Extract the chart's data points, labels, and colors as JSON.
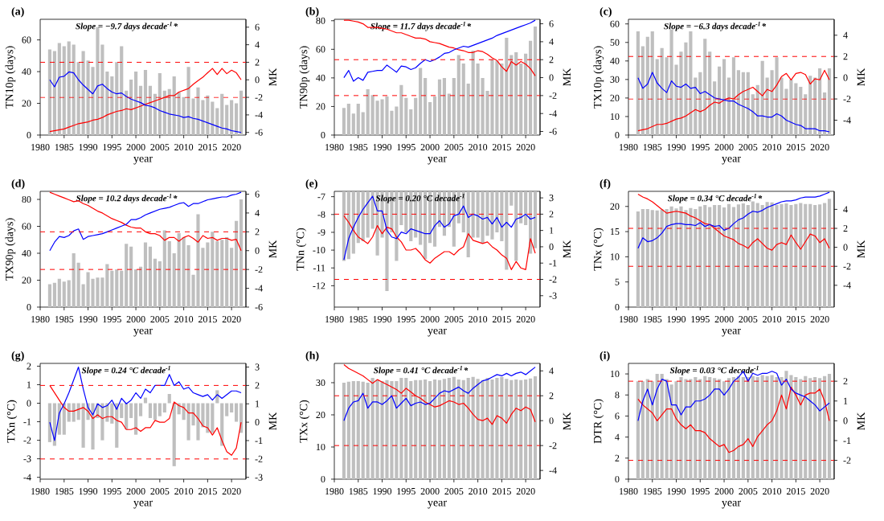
{
  "chart_data": [
    {
      "type": "bar",
      "title": "(a)",
      "xlabel": "year",
      "ylabel": "TN10p (days)",
      "y2label": "MK",
      "annotations": [
        "Slope = −9.7 days decade$^{-1}$*"
      ],
      "x": [
        1982,
        1983,
        1984,
        1985,
        1986,
        1987,
        1988,
        1989,
        1990,
        1991,
        1992,
        1993,
        1994,
        1995,
        1996,
        1997,
        1998,
        1999,
        2000,
        2001,
        2002,
        2003,
        2004,
        2005,
        2006,
        2007,
        2008,
        2009,
        2010,
        2011,
        2012,
        2013,
        2014,
        2015,
        2016,
        2017,
        2018,
        2019,
        2020,
        2021,
        2022
      ],
      "xlim": [
        1980,
        2023
      ],
      "xticks": [
        1980,
        1985,
        1990,
        1995,
        2000,
        2005,
        2010,
        2015,
        2020
      ],
      "ylim": [
        0,
        73
      ],
      "yticks": [
        0,
        20,
        40,
        60
      ],
      "y2lim": [
        -6.3,
        6.9
      ],
      "y2ticks": [
        -6,
        -4,
        -2,
        0,
        2,
        4,
        6
      ],
      "series": [
        {
          "type": "bar",
          "color": "#bfbfbf",
          "values": [
            54,
            53,
            58,
            56,
            59,
            57,
            46,
            53,
            47,
            43,
            68,
            57,
            40,
            37,
            46,
            56,
            28,
            35,
            40,
            31,
            41,
            31,
            26,
            39,
            28,
            29,
            37,
            27,
            24,
            43,
            23,
            30,
            22,
            25,
            21,
            17,
            26,
            19,
            22,
            20,
            28
          ]
        },
        {
          "type": "line",
          "axis": "y2",
          "color": "#ff0000",
          "values": [
            -5.9,
            -5.8,
            -5.7,
            -5.6,
            -5.4,
            -5.2,
            -5.0,
            -4.9,
            -4.8,
            -4.6,
            -4.5,
            -4.3,
            -4.0,
            -3.8,
            -3.6,
            -3.5,
            -3.3,
            -3.4,
            -3.2,
            -3.0,
            -2.8,
            -2.6,
            -2.4,
            -2.2,
            -2.0,
            -1.8,
            -1.8,
            -1.4,
            -1.2,
            -1.0,
            -0.5,
            -0.1,
            0.3,
            0.8,
            1.3,
            0.6,
            1.3,
            0.7,
            1.1,
            0.8,
            0.0
          ]
        },
        {
          "type": "line",
          "axis": "y2",
          "color": "#0000ff",
          "values": [
            0.0,
            -0.8,
            0.3,
            0.4,
            0.9,
            0.8,
            0.0,
            -0.6,
            -1.1,
            -1.6,
            -0.7,
            -0.5,
            -1.0,
            -1.4,
            -1.6,
            -1.5,
            -1.9,
            -2.2,
            -2.4,
            -2.6,
            -2.9,
            -3.0,
            -3.2,
            -3.5,
            -3.7,
            -3.9,
            -4.0,
            -4.1,
            -4.3,
            -4.2,
            -4.4,
            -4.5,
            -4.7,
            -4.9,
            -5.1,
            -5.3,
            -5.5,
            -5.6,
            -5.8,
            -5.9,
            -6.0
          ]
        }
      ],
      "ref_lines": [
        {
          "axis": "y2",
          "value": 2,
          "color": "#ff0000",
          "line_style": "dashed"
        },
        {
          "axis": "y2",
          "value": -2,
          "color": "#ff0000",
          "line_style": "dashed"
        }
      ]
    },
    {
      "type": "bar",
      "title": "(b)",
      "xlabel": "year",
      "ylabel": "TN90p (days)",
      "y2label": "MK",
      "annotations": [
        "Slope = 11.7 days decade$^{-1}$*"
      ],
      "x": [
        1982,
        1983,
        1984,
        1985,
        1986,
        1987,
        1988,
        1989,
        1990,
        1991,
        1992,
        1993,
        1994,
        1995,
        1996,
        1997,
        1998,
        1999,
        2000,
        2001,
        2002,
        2003,
        2004,
        2005,
        2006,
        2007,
        2008,
        2009,
        2010,
        2011,
        2012,
        2013,
        2014,
        2015,
        2016,
        2017,
        2018,
        2019,
        2020,
        2021,
        2022
      ],
      "xlim": [
        1980,
        2023
      ],
      "xticks": [
        1980,
        1985,
        1990,
        1995,
        2000,
        2005,
        2010,
        2015,
        2020
      ],
      "ylim": [
        0,
        81
      ],
      "yticks": [
        0,
        20,
        40,
        60,
        80
      ],
      "y2lim": [
        -6.4,
        6.5
      ],
      "y2ticks": [
        -6,
        -4,
        -2,
        0,
        2,
        4,
        6
      ],
      "series": [
        {
          "type": "bar",
          "color": "#bfbfbf",
          "values": [
            19,
            22,
            15,
            22,
            16,
            32,
            28,
            24,
            25,
            27,
            17,
            20,
            35,
            26,
            18,
            26,
            47,
            40,
            23,
            27,
            39,
            40,
            29,
            40,
            56,
            50,
            36,
            59,
            50,
            40,
            31,
            53,
            52,
            50,
            68,
            56,
            58,
            50,
            57,
            66,
            76
          ]
        },
        {
          "type": "line",
          "axis": "y2",
          "color": "#ff0000",
          "values": [
            6.4,
            6.4,
            6.3,
            6.2,
            6.0,
            5.6,
            5.6,
            5.6,
            5.5,
            5.4,
            5.2,
            5.0,
            5.0,
            4.8,
            4.6,
            4.4,
            4.4,
            4.3,
            4.0,
            3.9,
            3.8,
            3.6,
            3.4,
            3.3,
            3.1,
            3.0,
            2.8,
            2.8,
            3.0,
            2.9,
            2.6,
            2.2,
            1.9,
            1.2,
            0.7,
            1.8,
            1.4,
            1.8,
            1.5,
            1.0,
            0.2
          ]
        },
        {
          "type": "line",
          "axis": "y2",
          "color": "#0000ff",
          "values": [
            0.0,
            0.8,
            -0.4,
            0.0,
            -0.3,
            0.6,
            0.7,
            0.8,
            0.8,
            1.4,
            1.0,
            0.6,
            1.3,
            1.2,
            0.9,
            1.1,
            1.6,
            2.0,
            1.8,
            2.0,
            2.3,
            2.7,
            2.8,
            3.1,
            3.3,
            3.5,
            3.4,
            3.6,
            3.8,
            4.0,
            4.2,
            4.4,
            4.7,
            4.9,
            5.1,
            5.3,
            5.5,
            5.7,
            5.9,
            6.1,
            6.4
          ]
        }
      ],
      "ref_lines": [
        {
          "axis": "y2",
          "value": 2,
          "color": "#ff0000",
          "line_style": "dashed"
        },
        {
          "axis": "y2",
          "value": -2,
          "color": "#ff0000",
          "line_style": "dashed"
        }
      ]
    },
    {
      "type": "bar",
      "title": "(c)",
      "xlabel": "year",
      "ylabel": "TX10p (days)",
      "y2label": "MK",
      "annotations": [
        "Slope = −6.3 days decade$^{-1}$*"
      ],
      "x": [
        1982,
        1983,
        1984,
        1985,
        1986,
        1987,
        1988,
        1989,
        1990,
        1991,
        1992,
        1993,
        1994,
        1995,
        1996,
        1997,
        1998,
        1999,
        2000,
        2001,
        2002,
        2003,
        2004,
        2005,
        2006,
        2007,
        2008,
        2009,
        2010,
        2011,
        2012,
        2013,
        2014,
        2015,
        2016,
        2017,
        2018,
        2019,
        2020,
        2021,
        2022
      ],
      "xlim": [
        1980,
        2023
      ],
      "xticks": [
        1980,
        1985,
        1990,
        1995,
        2000,
        2005,
        2010,
        2015,
        2020
      ],
      "ylim": [
        0,
        62.5
      ],
      "yticks": [
        0,
        10,
        20,
        30,
        40,
        50,
        60
      ],
      "y2lim": [
        -5.4,
        5.5
      ],
      "y2ticks": [
        -4,
        -2,
        0,
        2,
        4
      ],
      "series": [
        {
          "type": "bar",
          "color": "#bfbfbf",
          "values": [
            56,
            48,
            53,
            56,
            41,
            47,
            42,
            57,
            38,
            45,
            50,
            56,
            31,
            34,
            52,
            45,
            29,
            37,
            41,
            31,
            42,
            35,
            34,
            34,
            22,
            27,
            40,
            31,
            35,
            42,
            31,
            25,
            30,
            28,
            26,
            22,
            32,
            31,
            36,
            23,
            36
          ]
        },
        {
          "type": "line",
          "axis": "y2",
          "color": "#ff0000",
          "values": [
            -5.0,
            -4.9,
            -4.8,
            -4.6,
            -4.4,
            -4.4,
            -4.3,
            -4.1,
            -3.9,
            -3.8,
            -3.6,
            -3.3,
            -3.0,
            -3.2,
            -3.0,
            -2.6,
            -2.3,
            -2.4,
            -2.1,
            -1.9,
            -2.0,
            -1.6,
            -1.3,
            -1.1,
            -0.9,
            -1.3,
            -1.7,
            -1.1,
            -1.3,
            -0.7,
            0.1,
            0.4,
            -0.2,
            0.4,
            0.5,
            0.3,
            -0.6,
            -0.1,
            -0.2,
            0.7,
            -0.2
          ]
        },
        {
          "type": "line",
          "axis": "y2",
          "color": "#0000ff",
          "values": [
            0.0,
            -1.0,
            -0.6,
            0.5,
            -0.5,
            -1.0,
            -1.4,
            -0.3,
            -0.8,
            -0.9,
            -0.6,
            -1.0,
            -0.9,
            -1.5,
            -1.3,
            -1.6,
            -1.9,
            -2.0,
            -2.1,
            -2.2,
            -2.2,
            -2.5,
            -2.7,
            -2.9,
            -3.2,
            -3.6,
            -3.6,
            -3.7,
            -3.7,
            -3.4,
            -3.6,
            -4.0,
            -4.2,
            -4.4,
            -4.5,
            -4.8,
            -4.8,
            -4.8,
            -5.0,
            -5.0,
            -5.1
          ]
        }
      ],
      "ref_lines": [
        {
          "axis": "y2",
          "value": 2,
          "color": "#ff0000",
          "line_style": "dashed"
        },
        {
          "axis": "y2",
          "value": -2,
          "color": "#ff0000",
          "line_style": "dashed"
        }
      ]
    },
    {
      "type": "bar",
      "title": "(d)",
      "xlabel": "year",
      "ylabel": "TX90p (days)",
      "y2label": "MK",
      "annotations": [
        "Slope = 10.2 days decade$^{-1}$*"
      ],
      "x": [
        1982,
        1983,
        1984,
        1985,
        1986,
        1987,
        1988,
        1989,
        1990,
        1991,
        1992,
        1993,
        1994,
        1995,
        1996,
        1997,
        1998,
        1999,
        2000,
        2001,
        2002,
        2003,
        2004,
        2005,
        2006,
        2007,
        2008,
        2009,
        2010,
        2011,
        2012,
        2013,
        2014,
        2015,
        2016,
        2017,
        2018,
        2019,
        2020,
        2021,
        2022
      ],
      "xlim": [
        1980,
        2023
      ],
      "xticks": [
        1980,
        1985,
        1990,
        1995,
        2000,
        2005,
        2010,
        2015,
        2020
      ],
      "ylim": [
        0,
        86
      ],
      "yticks": [
        0,
        20,
        40,
        60,
        80
      ],
      "y2lim": [
        -6,
        6.3
      ],
      "y2ticks": [
        -6,
        -4,
        -2,
        0,
        2,
        4,
        6
      ],
      "series": [
        {
          "type": "bar",
          "color": "#bfbfbf",
          "values": [
            17,
            18,
            21,
            19,
            20,
            40,
            33,
            17,
            26,
            21,
            22,
            22,
            32,
            27,
            28,
            27,
            47,
            45,
            28,
            30,
            48,
            45,
            36,
            34,
            57,
            49,
            40,
            55,
            52,
            46,
            24,
            69,
            44,
            48,
            56,
            49,
            50,
            52,
            44,
            64,
            80
          ]
        },
        {
          "type": "line",
          "axis": "y2",
          "color": "#ff0000",
          "values": [
            6.2,
            6.0,
            5.8,
            5.6,
            5.4,
            5.2,
            5.3,
            5.0,
            4.8,
            4.5,
            4.2,
            4.0,
            3.7,
            3.4,
            3.2,
            3.0,
            2.7,
            2.5,
            2.4,
            2.4,
            2.0,
            1.8,
            1.8,
            1.6,
            1.1,
            1.4,
            1.4,
            1.0,
            1.4,
            1.6,
            1.3,
            0.9,
            1.6,
            1.3,
            1.4,
            1.1,
            1.3,
            1.3,
            1.1,
            1.2,
            0.0
          ]
        },
        {
          "type": "line",
          "axis": "y2",
          "color": "#0000ff",
          "values": [
            0.0,
            0.9,
            1.5,
            1.4,
            1.6,
            2.1,
            2.3,
            1.2,
            1.5,
            1.6,
            1.7,
            1.8,
            2.0,
            2.2,
            2.4,
            2.6,
            2.8,
            3.3,
            3.3,
            3.5,
            3.8,
            4.0,
            4.2,
            4.4,
            4.5,
            4.6,
            4.8,
            5.0,
            5.1,
            4.7,
            5.0,
            5.0,
            5.2,
            5.4,
            5.5,
            5.6,
            5.7,
            5.7,
            5.9,
            6.0,
            6.2
          ]
        }
      ],
      "ref_lines": [
        {
          "axis": "y2",
          "value": 2,
          "color": "#ff0000",
          "line_style": "dashed"
        },
        {
          "axis": "y2",
          "value": -2,
          "color": "#ff0000",
          "line_style": "dashed"
        }
      ]
    },
    {
      "type": "bar",
      "title": "(e)",
      "xlabel": "year",
      "ylabel": "TNn (°C)",
      "y2label": "MK",
      "annotations": [
        "Slope = 0.20 °C decade$^{-1}$"
      ],
      "x": [
        1982,
        1983,
        1984,
        1985,
        1986,
        1987,
        1988,
        1989,
        1990,
        1991,
        1992,
        1993,
        1994,
        1995,
        1996,
        1997,
        1998,
        1999,
        2000,
        2001,
        2002,
        2003,
        2004,
        2005,
        2006,
        2007,
        2008,
        2009,
        2010,
        2011,
        2012,
        2013,
        2014,
        2015,
        2016,
        2017,
        2018,
        2019,
        2020,
        2021,
        2022
      ],
      "xlim": [
        1980,
        2023
      ],
      "xticks": [
        1980,
        1985,
        1990,
        1995,
        2000,
        2005,
        2010,
        2015,
        2020
      ],
      "ylim": [
        -13.2,
        -6.7
      ],
      "yticks": [
        -12,
        -11,
        -10,
        -9,
        -8,
        -7
      ],
      "y2lim": [
        -3.7,
        3.4
      ],
      "y2ticks": [
        -3,
        -2,
        -1,
        0,
        1,
        2,
        3
      ],
      "series": [
        {
          "type": "bar",
          "color": "#bfbfbf",
          "values": [
            -10.6,
            -10.5,
            -10.2,
            -9.6,
            -9.5,
            -9.3,
            -8.8,
            -10.3,
            -9.3,
            -12.3,
            -9.0,
            -10.6,
            -8.6,
            -9.0,
            -9.5,
            -9.3,
            -9.7,
            -10.5,
            -9.6,
            -9.8,
            -8.7,
            -9.2,
            -8.7,
            -9.8,
            -8.5,
            -9.0,
            -10.4,
            -9.3,
            -9.3,
            -9.6,
            -9.2,
            -9.4,
            -9.0,
            -9.5,
            -11.1,
            -7.5,
            -10.6,
            -8.5,
            -8.6,
            -10.2,
            -9.9
          ]
        },
        {
          "type": "line",
          "axis": "y2",
          "color": "#ff0000",
          "values": [
            1.9,
            1.5,
            1.0,
            0.6,
            0.4,
            0.2,
            0.6,
            1.3,
            0.8,
            1.2,
            1.1,
            0.6,
            0.3,
            -0.2,
            -0.2,
            -0.1,
            -0.4,
            -0.8,
            -1.0,
            -0.7,
            -0.5,
            -0.3,
            -0.3,
            -0.5,
            -0.2,
            0.0,
            0.8,
            0.4,
            0.3,
            0.2,
            0.3,
            0.0,
            -0.2,
            -0.5,
            -0.7,
            -1.4,
            -0.9,
            -1.3,
            -1.4,
            0.5,
            -0.4
          ]
        },
        {
          "type": "line",
          "axis": "y2",
          "color": "#0000ff",
          "values": [
            -0.8,
            0.5,
            1.2,
            1.8,
            2.3,
            2.7,
            3.1,
            2.2,
            2.2,
            1.0,
            0.6,
            0.5,
            0.9,
            0.8,
            1.1,
            1.0,
            0.9,
            0.8,
            0.8,
            1.3,
            1.6,
            1.2,
            1.4,
            1.9,
            2.0,
            2.5,
            1.8,
            2.0,
            1.9,
            1.7,
            1.8,
            1.4,
            1.8,
            1.2,
            1.5,
            1.2,
            1.7,
            1.8,
            2.0,
            1.7,
            1.8
          ]
        }
      ],
      "ref_lines": [
        {
          "axis": "y2",
          "value": 2,
          "color": "#ff0000",
          "line_style": "dashed"
        },
        {
          "axis": "y2",
          "value": -2,
          "color": "#ff0000",
          "line_style": "dashed"
        }
      ]
    },
    {
      "type": "bar",
      "title": "(f)",
      "xlabel": "year",
      "ylabel": "TNx (°C)",
      "y2label": "MK",
      "annotations": [
        "Slope = 0.34 °C decade$^{-1}$*"
      ],
      "x": [
        1982,
        1983,
        1984,
        1985,
        1986,
        1987,
        1988,
        1989,
        1990,
        1991,
        1992,
        1993,
        1994,
        1995,
        1996,
        1997,
        1998,
        1999,
        2000,
        2001,
        2002,
        2003,
        2004,
        2005,
        2006,
        2007,
        2008,
        2009,
        2010,
        2011,
        2012,
        2013,
        2014,
        2015,
        2016,
        2017,
        2018,
        2019,
        2020,
        2021,
        2022
      ],
      "xlim": [
        1980,
        2023
      ],
      "xticks": [
        1980,
        1985,
        1990,
        1995,
        2000,
        2005,
        2010,
        2015,
        2020
      ],
      "ylim": [
        0,
        23
      ],
      "yticks": [
        0,
        5,
        10,
        15,
        20
      ],
      "y2lim": [
        -6.3,
        5.9
      ],
      "y2ticks": [
        -4,
        -2,
        0,
        2,
        4
      ],
      "series": [
        {
          "type": "bar",
          "color": "#bfbfbf",
          "values": [
            19,
            19.5,
            19.5,
            19.3,
            19.2,
            19.4,
            19.5,
            20,
            19.6,
            20,
            19.3,
            19.7,
            19.5,
            20,
            20.3,
            19.9,
            20.3,
            20.3,
            19.8,
            20.5,
            19.9,
            20.4,
            20.6,
            20.3,
            21,
            20.7,
            20.3,
            20.9,
            20.8,
            20.3,
            20.5,
            20.6,
            20.3,
            20.5,
            20.7,
            20.5,
            20.5,
            20.3,
            20.4,
            20.7,
            21.5
          ]
        },
        {
          "type": "line",
          "axis": "y2",
          "color": "#ff0000",
          "values": [
            5.6,
            5.3,
            5.1,
            4.8,
            4.4,
            4.0,
            3.6,
            3.7,
            3.8,
            3.7,
            3.6,
            3.3,
            3.1,
            2.8,
            2.5,
            2.4,
            2.0,
            1.6,
            1.2,
            1.0,
            0.8,
            0.4,
            0.2,
            -0.1,
            0.5,
            0.9,
            0.4,
            -0.1,
            -0.3,
            0.3,
            0.5,
            0.3,
            1.3,
            0.5,
            -0.2,
            0.6,
            1.4,
            1.2,
            0.5,
            0.9,
            -0.1
          ]
        },
        {
          "type": "line",
          "axis": "y2",
          "color": "#0000ff",
          "values": [
            -0.1,
            1.0,
            0.6,
            0.7,
            1.0,
            1.5,
            2.2,
            2.4,
            2.5,
            2.5,
            2.4,
            2.4,
            2.3,
            2.6,
            2.2,
            2.4,
            2.2,
            2.3,
            1.8,
            2.0,
            2.5,
            2.9,
            3.1,
            3.5,
            3.8,
            3.7,
            3.9,
            4.2,
            4.4,
            4.6,
            4.8,
            4.9,
            4.9,
            5.0,
            5.2,
            5.3,
            5.3,
            5.3,
            5.4,
            5.6,
            5.8
          ]
        }
      ],
      "ref_lines": [
        {
          "axis": "y2",
          "value": 2,
          "color": "#ff0000",
          "line_style": "dashed"
        },
        {
          "axis": "y2",
          "value": -2,
          "color": "#ff0000",
          "line_style": "dashed"
        }
      ]
    },
    {
      "type": "bar",
      "title": "(g)",
      "xlabel": "year",
      "ylabel": "TXn (°C)",
      "y2label": "MK",
      "annotations": [
        "Slope = 0.24 °C decade$^{-1}$"
      ],
      "x": [
        1982,
        1983,
        1984,
        1985,
        1986,
        1987,
        1988,
        1989,
        1990,
        1991,
        1992,
        1993,
        1994,
        1995,
        1996,
        1997,
        1998,
        1999,
        2000,
        2001,
        2002,
        2003,
        2004,
        2005,
        2006,
        2007,
        2008,
        2009,
        2010,
        2011,
        2012,
        2013,
        2014,
        2015,
        2016,
        2017,
        2018,
        2019,
        2020,
        2021,
        2022
      ],
      "xlim": [
        1980,
        2023
      ],
      "xticks": [
        1980,
        1985,
        1990,
        1995,
        2000,
        2005,
        2010,
        2015,
        2020
      ],
      "ylim": [
        -4.1,
        2.15
      ],
      "yticks": [
        -4,
        -3,
        -2,
        -1,
        0,
        1,
        2
      ],
      "y2lim": [
        -3.1,
        3.2
      ],
      "y2ticks": [
        -3,
        -2,
        -1,
        0,
        1,
        2,
        3
      ],
      "series": [
        {
          "type": "bar",
          "color": "#bfbfbf",
          "values": [
            -2.1,
            -2.3,
            -1.7,
            -1.7,
            -1.0,
            -1.0,
            -0.9,
            -2.4,
            -0.9,
            -2.5,
            -0.8,
            -2.0,
            -1.0,
            -1.1,
            -2.4,
            -0.8,
            -1.4,
            -0.8,
            -1.7,
            -0.7,
            0.3,
            -0.8,
            -0.9,
            -0.7,
            -0.5,
            0.5,
            -3.4,
            -0.6,
            -0.9,
            -2.0,
            -1.2,
            -2.0,
            -1.3,
            -1.6,
            -1.6,
            0.7,
            -2.3,
            -0.7,
            -0.5,
            -1.0,
            -1.6
          ]
        },
        {
          "type": "line",
          "axis": "y2",
          "color": "#ff0000",
          "values": [
            2.0,
            1.6,
            1.2,
            0.8,
            0.6,
            0.6,
            0.7,
            0.8,
            0.6,
            0.2,
            0.4,
            0.2,
            0.3,
            0.3,
            0.1,
            0.0,
            -0.4,
            -0.4,
            -0.3,
            -0.5,
            -0.3,
            -0.3,
            0.1,
            0.0,
            0.0,
            0.2,
            1.1,
            0.9,
            0.8,
            0.5,
            0.5,
            0.2,
            -0.2,
            -0.3,
            -0.7,
            -0.3,
            -1.0,
            -1.6,
            -1.8,
            -1.4,
            0.0
          ]
        },
        {
          "type": "line",
          "axis": "y2",
          "color": "#0000ff",
          "values": [
            0.0,
            -1.0,
            0.5,
            1.0,
            1.6,
            2.3,
            3.0,
            1.8,
            0.8,
            0.4,
            1.0,
            0.8,
            0.9,
            1.2,
            0.7,
            1.3,
            1.0,
            1.2,
            1.6,
            1.3,
            1.8,
            1.6,
            2.0,
            2.0,
            2.0,
            2.6,
            2.0,
            2.2,
            1.8,
            1.9,
            1.6,
            1.5,
            1.4,
            1.5,
            1.2,
            1.5,
            1.3,
            1.5,
            1.7,
            1.7,
            1.6
          ]
        }
      ],
      "ref_lines": [
        {
          "axis": "y2",
          "value": 2,
          "color": "#ff0000",
          "line_style": "dashed"
        },
        {
          "axis": "y2",
          "value": -2,
          "color": "#ff0000",
          "line_style": "dashed"
        }
      ]
    },
    {
      "type": "bar",
      "title": "(h)",
      "xlabel": "year",
      "ylabel": "TXx (°C)",
      "y2label": "MK",
      "annotations": [
        "Slope = 0.41 °C decade$^{-1}$*"
      ],
      "x": [
        1982,
        1983,
        1984,
        1985,
        1986,
        1987,
        1988,
        1989,
        1990,
        1991,
        1992,
        1993,
        1994,
        1995,
        1996,
        1997,
        1998,
        1999,
        2000,
        2001,
        2002,
        2003,
        2004,
        2005,
        2006,
        2007,
        2008,
        2009,
        2010,
        2011,
        2012,
        2013,
        2014,
        2015,
        2016,
        2017,
        2018,
        2019,
        2020,
        2021,
        2022
      ],
      "xlim": [
        1980,
        2023
      ],
      "xticks": [
        1980,
        1985,
        1990,
        1995,
        2000,
        2005,
        2010,
        2015,
        2020
      ],
      "ylim": [
        0,
        36
      ],
      "yticks": [
        0,
        10,
        20,
        30
      ],
      "y2lim": [
        -4.7,
        4.6
      ],
      "y2ticks": [
        -4,
        -2,
        0,
        2,
        4
      ],
      "series": [
        {
          "type": "bar",
          "color": "#bfbfbf",
          "values": [
            30,
            30.3,
            30.5,
            30.5,
            30.3,
            30,
            31.5,
            31,
            30.5,
            30.8,
            30.5,
            30.5,
            31.5,
            31.5,
            30.5,
            30.8,
            30.8,
            31,
            30.5,
            31,
            30.8,
            31.2,
            31.5,
            31.8,
            31,
            30.8,
            31.5,
            31.8,
            31.2,
            30.8,
            31.5,
            31,
            31.5,
            31.8,
            31.2,
            30.8,
            31,
            30.8,
            31,
            31.3,
            32
          ]
        },
        {
          "type": "line",
          "axis": "y2",
          "color": "#ff0000",
          "values": [
            4.5,
            4.2,
            4.0,
            3.8,
            3.6,
            3.3,
            3.0,
            3.3,
            3.1,
            2.9,
            2.7,
            2.5,
            2.2,
            2.6,
            2.3,
            2.0,
            1.8,
            1.5,
            1.3,
            1.1,
            1.2,
            1.4,
            1.6,
            1.5,
            1.3,
            1.4,
            1.0,
            0.5,
            0.1,
            0.0,
            0.2,
            -0.3,
            0.4,
            0.2,
            -0.2,
            0.5,
            1.0,
            0.8,
            1.1,
            0.9,
            -0.1
          ]
        },
        {
          "type": "line",
          "axis": "y2",
          "color": "#0000ff",
          "values": [
            0.0,
            1.0,
            1.5,
            1.6,
            2.2,
            1.0,
            1.5,
            1.5,
            1.3,
            1.6,
            2.0,
            1.0,
            1.4,
            1.8,
            1.2,
            1.4,
            1.5,
            1.3,
            1.4,
            1.8,
            2.2,
            2.4,
            2.3,
            2.5,
            2.7,
            2.4,
            2.2,
            2.6,
            2.9,
            3.2,
            3.3,
            3.5,
            3.7,
            3.6,
            3.8,
            3.6,
            3.8,
            3.9,
            3.7,
            4.0,
            4.3
          ]
        }
      ],
      "ref_lines": [
        {
          "axis": "y2",
          "value": 2,
          "color": "#ff0000",
          "line_style": "dashed"
        },
        {
          "axis": "y2",
          "value": -2,
          "color": "#ff0000",
          "line_style": "dashed"
        }
      ]
    },
    {
      "type": "bar",
      "title": "(i)",
      "xlabel": "year",
      "ylabel": "DTR (°C)",
      "y2label": "MK",
      "annotations": [
        "Slope = 0.03 °C decade$^{-1}$"
      ],
      "x": [
        1982,
        1983,
        1984,
        1985,
        1986,
        1987,
        1988,
        1989,
        1990,
        1991,
        1992,
        1993,
        1994,
        1995,
        1996,
        1997,
        1998,
        1999,
        2000,
        2001,
        2002,
        2003,
        2004,
        2005,
        2006,
        2007,
        2008,
        2009,
        2010,
        2011,
        2012,
        2013,
        2014,
        2015,
        2016,
        2017,
        2018,
        2019,
        2020,
        2021,
        2022
      ],
      "xlim": [
        1980,
        2023
      ],
      "xticks": [
        1980,
        1985,
        1990,
        1995,
        2000,
        2005,
        2010,
        2015,
        2020
      ],
      "ylim": [
        0,
        11
      ],
      "yticks": [
        0,
        2,
        4,
        6,
        8,
        10
      ],
      "y2lim": [
        -2.95,
        2.9
      ],
      "y2ticks": [
        -2,
        -1,
        0,
        1,
        2
      ],
      "series": [
        {
          "type": "bar",
          "color": "#bfbfbf",
          "values": [
            9.3,
            9.3,
            9.5,
            9.3,
            10.0,
            10.0,
            9.5,
            9.0,
            9.3,
            9.7,
            9.5,
            9.5,
            9.7,
            9.5,
            9.8,
            9.7,
            9.6,
            9.5,
            9.3,
            9.6,
            9.7,
            9.8,
            9.7,
            9.7,
            9.8,
            9.7,
            9.9,
            9.8,
            9.9,
            9.7,
            9.7,
            10.3,
            9.9,
            9.7,
            9.5,
            9.8,
            9.6,
            9.7,
            9.6,
            9.8,
            10.0
          ]
        },
        {
          "type": "line",
          "axis": "y2",
          "color": "#ff0000",
          "values": [
            1.1,
            0.8,
            0.6,
            0.4,
            0.0,
            0.3,
            0.6,
            0.6,
            0.1,
            -0.2,
            -0.4,
            -0.2,
            -0.5,
            -0.5,
            -0.6,
            -0.9,
            -1.1,
            -1.3,
            -1.2,
            -1.6,
            -1.5,
            -1.3,
            -1.2,
            -0.9,
            -1.3,
            -0.8,
            -0.5,
            -0.2,
            0.0,
            0.5,
            1.3,
            0.6,
            1.7,
            1.3,
            0.8,
            1.3,
            1.4,
            1.4,
            1.6,
            1.0,
            0.0
          ]
        },
        {
          "type": "line",
          "axis": "y2",
          "color": "#0000ff",
          "values": [
            0.0,
            1.0,
            1.6,
            0.8,
            1.6,
            2.1,
            2.0,
            0.8,
            0.8,
            0.3,
            0.7,
            0.7,
            1.0,
            1.0,
            1.1,
            1.3,
            1.6,
            1.6,
            1.3,
            1.6,
            2.0,
            2.2,
            2.5,
            2.0,
            2.4,
            2.3,
            2.4,
            2.4,
            2.5,
            2.4,
            1.8,
            2.1,
            1.6,
            1.4,
            1.3,
            1.2,
            1.0,
            0.8,
            0.5,
            0.7,
            0.9
          ]
        }
      ],
      "ref_lines": [
        {
          "axis": "y2",
          "value": 2,
          "color": "#ff0000",
          "line_style": "dashed"
        },
        {
          "axis": "y2",
          "value": -2,
          "color": "#ff0000",
          "line_style": "dashed"
        }
      ]
    }
  ]
}
